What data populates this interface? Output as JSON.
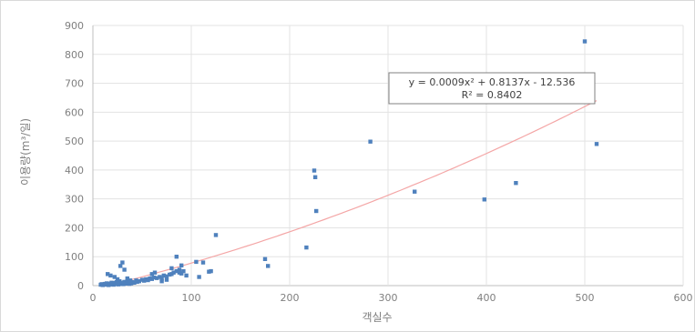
{
  "chart_data": {
    "type": "scatter",
    "title": "",
    "xlabel": "객실수",
    "ylabel": "이용량(m³/일)",
    "xlim": [
      0,
      600
    ],
    "ylim": [
      0,
      900
    ],
    "x_ticks": [
      0,
      100,
      200,
      300,
      400,
      500,
      600
    ],
    "y_ticks": [
      0,
      100,
      200,
      300,
      400,
      500,
      600,
      700,
      800,
      900
    ],
    "grid": true,
    "marker_color": "#4f81bd",
    "trendline_color": "#f4a6a6",
    "trendline": {
      "type": "polynomial",
      "coefficients": [
        0.0009,
        0.8137,
        -12.536
      ],
      "x_range": [
        30,
        512
      ],
      "equation": "y = 0.0009x² + 0.8137x - 12.536",
      "r_squared": "R² = 0.8402"
    },
    "points": [
      [
        8,
        3
      ],
      [
        9,
        5
      ],
      [
        10,
        2
      ],
      [
        11,
        4
      ],
      [
        12,
        6
      ],
      [
        13,
        3
      ],
      [
        14,
        8
      ],
      [
        15,
        5
      ],
      [
        16,
        2
      ],
      [
        17,
        7
      ],
      [
        18,
        4
      ],
      [
        19,
        10
      ],
      [
        20,
        6
      ],
      [
        21,
        3
      ],
      [
        22,
        9
      ],
      [
        23,
        5
      ],
      [
        24,
        12
      ],
      [
        25,
        7
      ],
      [
        26,
        4
      ],
      [
        27,
        15
      ],
      [
        28,
        8
      ],
      [
        29,
        6
      ],
      [
        30,
        10
      ],
      [
        31,
        5
      ],
      [
        32,
        13
      ],
      [
        33,
        9
      ],
      [
        34,
        7
      ],
      [
        35,
        16
      ],
      [
        36,
        11
      ],
      [
        37,
        6
      ],
      [
        38,
        14
      ],
      [
        39,
        8
      ],
      [
        40,
        12
      ],
      [
        42,
        10
      ],
      [
        44,
        18
      ],
      [
        45,
        13
      ],
      [
        47,
        15
      ],
      [
        50,
        20
      ],
      [
        52,
        17
      ],
      [
        54,
        22
      ],
      [
        56,
        19
      ],
      [
        58,
        25
      ],
      [
        60,
        23
      ],
      [
        62,
        28
      ],
      [
        65,
        26
      ],
      [
        68,
        30
      ],
      [
        70,
        24
      ],
      [
        72,
        35
      ],
      [
        75,
        32
      ],
      [
        78,
        38
      ],
      [
        80,
        40
      ],
      [
        82,
        45
      ],
      [
        85,
        50
      ],
      [
        88,
        55
      ],
      [
        90,
        42
      ],
      [
        15,
        40
      ],
      [
        18,
        35
      ],
      [
        22,
        30
      ],
      [
        25,
        22
      ],
      [
        28,
        68
      ],
      [
        30,
        80
      ],
      [
        32,
        55
      ],
      [
        35,
        25
      ],
      [
        38,
        18
      ],
      [
        60,
        40
      ],
      [
        63,
        45
      ],
      [
        70,
        15
      ],
      [
        75,
        20
      ],
      [
        80,
        60
      ],
      [
        85,
        100
      ],
      [
        88,
        45
      ],
      [
        90,
        70
      ],
      [
        92,
        50
      ],
      [
        95,
        35
      ],
      [
        105,
        82
      ],
      [
        108,
        30
      ],
      [
        112,
        80
      ],
      [
        118,
        48
      ],
      [
        120,
        50
      ],
      [
        125,
        175
      ],
      [
        175,
        92
      ],
      [
        178,
        68
      ],
      [
        217,
        132
      ],
      [
        225,
        398
      ],
      [
        226,
        375
      ],
      [
        227,
        258
      ],
      [
        282,
        498
      ],
      [
        327,
        325
      ],
      [
        398,
        298
      ],
      [
        430,
        355
      ],
      [
        500,
        845
      ],
      [
        512,
        490
      ]
    ]
  }
}
